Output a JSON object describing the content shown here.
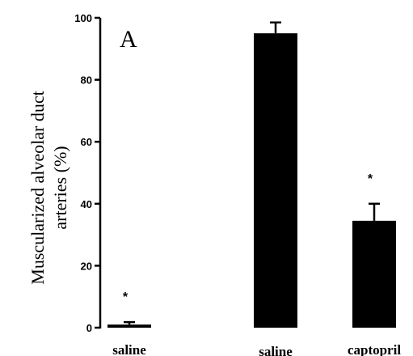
{
  "chart_data": {
    "type": "bar",
    "panel_label": "A",
    "ylabel_lines": [
      "Muscularized alveolar duct",
      "arteries (%)"
    ],
    "xlabel": "",
    "ylim": [
      0,
      100
    ],
    "yticks": [
      0,
      20,
      40,
      60,
      80,
      100
    ],
    "categories": [
      "saline",
      "saline",
      "captopril"
    ],
    "values": [
      1,
      95,
      34.5
    ],
    "errors": [
      0.8,
      3.5,
      5.5
    ],
    "annotations": [
      "*",
      "",
      "*"
    ],
    "grid": false,
    "bar_color": "#000000"
  }
}
